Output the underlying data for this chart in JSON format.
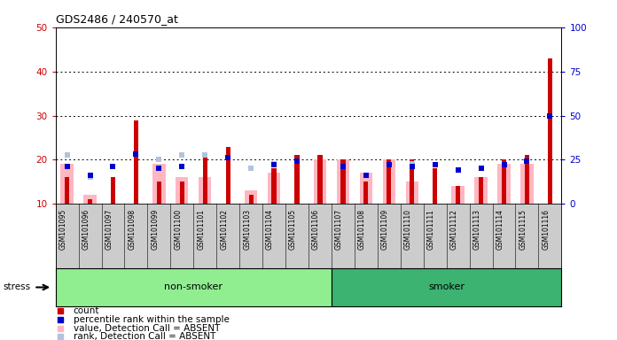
{
  "title": "GDS2486 / 240570_at",
  "samples": [
    "GSM101095",
    "GSM101096",
    "GSM101097",
    "GSM101098",
    "GSM101099",
    "GSM101100",
    "GSM101101",
    "GSM101102",
    "GSM101103",
    "GSM101104",
    "GSM101105",
    "GSM101106",
    "GSM101107",
    "GSM101108",
    "GSM101109",
    "GSM101110",
    "GSM101111",
    "GSM101112",
    "GSM101113",
    "GSM101114",
    "GSM101115",
    "GSM101116"
  ],
  "count": [
    16,
    11,
    16,
    29,
    15,
    15,
    21,
    23,
    12,
    18,
    21,
    21,
    20,
    15,
    20,
    20,
    18,
    14,
    16,
    20,
    21,
    43
  ],
  "percentile_rank_right": [
    21,
    16,
    21,
    28,
    20,
    21,
    null,
    26,
    null,
    22,
    24,
    null,
    21,
    16,
    22,
    21,
    22,
    19,
    20,
    22,
    24,
    50
  ],
  "value_absent": [
    19,
    12,
    null,
    null,
    19,
    16,
    16,
    null,
    13,
    17,
    null,
    20,
    20,
    17,
    20,
    15,
    null,
    14,
    16,
    19,
    19,
    null
  ],
  "rank_absent": [
    21,
    16,
    null,
    null,
    20,
    21,
    21,
    null,
    18,
    19,
    null,
    null,
    null,
    null,
    null,
    19,
    null,
    null,
    null,
    null,
    null,
    null
  ],
  "non_smoker_count": 12,
  "smoker_count": 10,
  "non_smoker_color": "#90EE90",
  "smoker_color": "#3CB371",
  "bar_color_count": "#CC0000",
  "bar_color_percentile": "#0000CC",
  "bar_color_value_absent": "#FFB6C1",
  "bar_color_rank_absent": "#B0C4DE",
  "ylim_left": [
    10,
    50
  ],
  "yticks_left": [
    10,
    20,
    30,
    40,
    50
  ],
  "ylim_right": [
    0,
    100
  ],
  "yticks_right": [
    0,
    25,
    50,
    75,
    100
  ],
  "ylabel_left_color": "#CC0000",
  "ylabel_right_color": "#0000CC",
  "bg_color": "#FFFFFF",
  "label_area_color": "#CCCCCC"
}
